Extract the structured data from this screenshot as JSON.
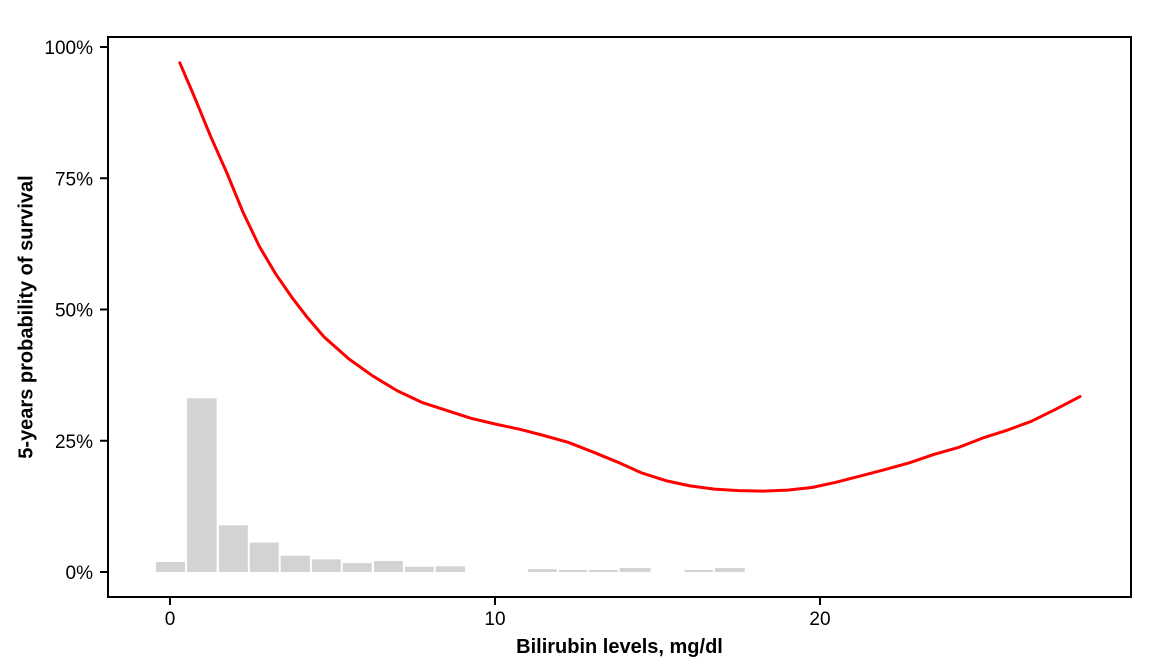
{
  "figure": {
    "x_axis": {
      "title": "Bilirubin levels, mg/dl",
      "tick_labels": [
        "0",
        "10",
        "20"
      ],
      "tick_values": [
        0,
        10,
        20
      ],
      "range": [
        -1.9,
        29.6
      ]
    },
    "y_axis": {
      "title": "5-years probability of survival",
      "tick_labels": [
        "0%",
        "25%",
        "50%",
        "75%",
        "100%"
      ],
      "tick_values": [
        0,
        25,
        50,
        75,
        100
      ],
      "range_pct": [
        -4.8,
        101.9
      ]
    },
    "colors": {
      "curve": "#ff0000",
      "histogram_fill": "#d3d3d3",
      "panel_border": "#000000",
      "tick": "#000000",
      "text": "#000000",
      "background": "#ffffff"
    }
  },
  "chart_data": {
    "type": "line",
    "title": "",
    "xlabel": "Bilirubin levels, mg/dl",
    "ylabel": "5-years probability of survival",
    "xlim": [
      -1.9,
      29.6
    ],
    "ylim_pct": [
      -4.8,
      101.9
    ],
    "x_ticks": [
      0,
      10,
      20
    ],
    "y_ticks_pct": [
      0,
      25,
      50,
      75,
      100
    ],
    "grid": false,
    "legend": false,
    "series": [
      {
        "name": "smoothed-5yr-survival-vs-bilirubin",
        "color": "#ff0000",
        "stroke_width": 3,
        "points_x_pct": [
          [
            0.3,
            97.0
          ],
          [
            0.75,
            90.5
          ],
          [
            1.25,
            83.0
          ],
          [
            1.75,
            76.0
          ],
          [
            2.25,
            68.5
          ],
          [
            2.75,
            62.0
          ],
          [
            3.25,
            56.8
          ],
          [
            3.75,
            52.3
          ],
          [
            4.25,
            48.3
          ],
          [
            4.75,
            44.7
          ],
          [
            5.5,
            40.6
          ],
          [
            6.25,
            37.3
          ],
          [
            7.0,
            34.5
          ],
          [
            7.75,
            32.3
          ],
          [
            8.5,
            30.8
          ],
          [
            9.25,
            29.3
          ],
          [
            10.0,
            28.2
          ],
          [
            10.75,
            27.2
          ],
          [
            11.5,
            26.0
          ],
          [
            12.25,
            24.7
          ],
          [
            13.0,
            22.9
          ],
          [
            13.75,
            21.0
          ],
          [
            14.5,
            18.9
          ],
          [
            15.25,
            17.4
          ],
          [
            16.0,
            16.4
          ],
          [
            16.75,
            15.8
          ],
          [
            17.5,
            15.5
          ],
          [
            18.25,
            15.4
          ],
          [
            19.0,
            15.6
          ],
          [
            19.75,
            16.1
          ],
          [
            20.5,
            17.1
          ],
          [
            21.25,
            18.3
          ],
          [
            22.0,
            19.5
          ],
          [
            22.75,
            20.8
          ],
          [
            23.5,
            22.4
          ],
          [
            24.25,
            23.7
          ],
          [
            25.0,
            25.5
          ],
          [
            25.75,
            27.0
          ],
          [
            26.5,
            28.7
          ],
          [
            27.25,
            31.0
          ],
          [
            28.0,
            33.4
          ]
        ]
      }
    ],
    "histogram": {
      "name": "bilirubin-level-distribution",
      "color": "#d3d3d3",
      "unit": "percent-of-patients",
      "bars_x0_x1_heightpct": [
        [
          -0.45,
          0.48,
          1.9
        ],
        [
          0.51,
          1.45,
          33.1
        ],
        [
          1.49,
          2.41,
          8.9
        ],
        [
          2.44,
          3.36,
          5.6
        ],
        [
          3.39,
          4.32,
          3.1
        ],
        [
          4.35,
          5.27,
          2.4
        ],
        [
          5.3,
          6.22,
          1.7
        ],
        [
          6.26,
          7.18,
          2.1
        ],
        [
          7.21,
          8.13,
          1.0
        ],
        [
          8.16,
          9.09,
          1.1
        ],
        [
          11.0,
          11.92,
          0.55
        ],
        [
          11.95,
          12.85,
          0.4
        ],
        [
          12.88,
          13.79,
          0.4
        ],
        [
          13.82,
          14.8,
          0.75
        ],
        [
          15.82,
          16.72,
          0.4
        ],
        [
          16.75,
          17.7,
          0.75
        ]
      ]
    }
  }
}
